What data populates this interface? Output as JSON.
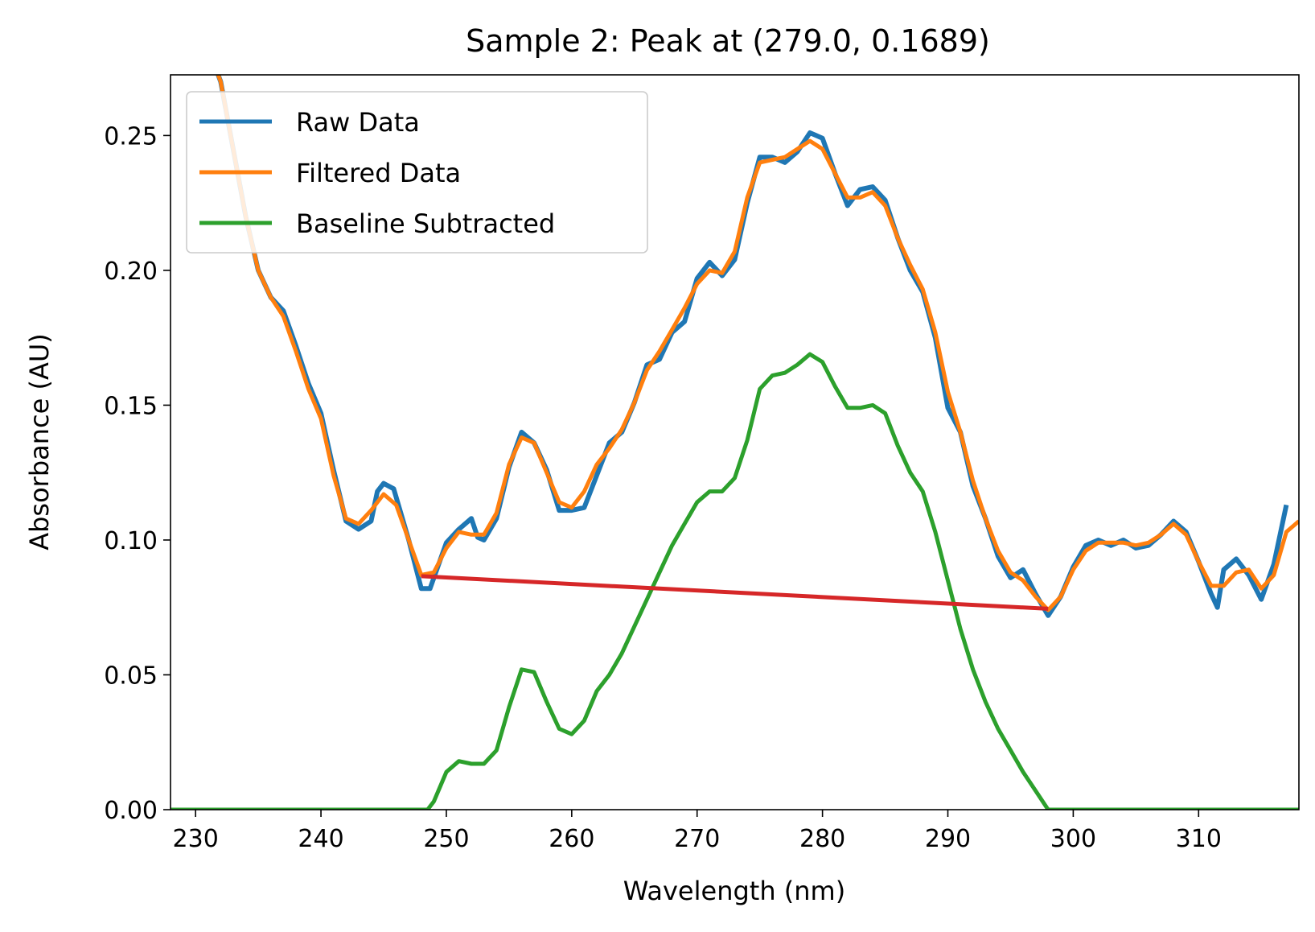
{
  "chart_data": {
    "type": "line",
    "title": "Sample 2: Peak at (279.0, 0.1689)",
    "xlabel": "Wavelength (nm)",
    "ylabel": "Absorbance (AU)",
    "xlim": [
      228,
      318
    ],
    "ylim": [
      0,
      0.2725
    ],
    "xticks": [
      230,
      240,
      250,
      260,
      270,
      280,
      290,
      300,
      310
    ],
    "yticks": [
      0.0,
      0.05,
      0.1,
      0.15,
      0.2,
      0.25
    ],
    "xtick_labels": [
      "230",
      "240",
      "250",
      "260",
      "270",
      "280",
      "290",
      "300",
      "310"
    ],
    "ytick_labels": [
      "0.00",
      "0.05",
      "0.10",
      "0.15",
      "0.20",
      "0.25"
    ],
    "grid": false,
    "legend_position": "upper-left",
    "series": [
      {
        "name": "Raw Data",
        "color": "#1f77b4",
        "points": [
          [
            228,
            0.32
          ],
          [
            230,
            0.295
          ],
          [
            232,
            0.27
          ],
          [
            233,
            0.245
          ],
          [
            234,
            0.22
          ],
          [
            235,
            0.2
          ],
          [
            236,
            0.19
          ],
          [
            237,
            0.185
          ],
          [
            238,
            0.172
          ],
          [
            239,
            0.158
          ],
          [
            240,
            0.147
          ],
          [
            241,
            0.126
          ],
          [
            242,
            0.107
          ],
          [
            243,
            0.104
          ],
          [
            244,
            0.107
          ],
          [
            244.5,
            0.118
          ],
          [
            245,
            0.121
          ],
          [
            245.8,
            0.119
          ],
          [
            247,
            0.1
          ],
          [
            248,
            0.082
          ],
          [
            248.7,
            0.082
          ],
          [
            250,
            0.099
          ],
          [
            251,
            0.104
          ],
          [
            252,
            0.108
          ],
          [
            252.5,
            0.101
          ],
          [
            253,
            0.1
          ],
          [
            254,
            0.108
          ],
          [
            255,
            0.127
          ],
          [
            256,
            0.14
          ],
          [
            257,
            0.136
          ],
          [
            258,
            0.126
          ],
          [
            259,
            0.111
          ],
          [
            260,
            0.111
          ],
          [
            261,
            0.112
          ],
          [
            262,
            0.124
          ],
          [
            263,
            0.136
          ],
          [
            264,
            0.14
          ],
          [
            265,
            0.151
          ],
          [
            266,
            0.165
          ],
          [
            267,
            0.167
          ],
          [
            268,
            0.177
          ],
          [
            269,
            0.181
          ],
          [
            270,
            0.197
          ],
          [
            271,
            0.203
          ],
          [
            272,
            0.198
          ],
          [
            273,
            0.204
          ],
          [
            274,
            0.225
          ],
          [
            275,
            0.242
          ],
          [
            276,
            0.242
          ],
          [
            277,
            0.24
          ],
          [
            278,
            0.244
          ],
          [
            279,
            0.251
          ],
          [
            280,
            0.249
          ],
          [
            281,
            0.236
          ],
          [
            282,
            0.224
          ],
          [
            283,
            0.23
          ],
          [
            284,
            0.231
          ],
          [
            285,
            0.226
          ],
          [
            286,
            0.212
          ],
          [
            287,
            0.2
          ],
          [
            288,
            0.192
          ],
          [
            289,
            0.175
          ],
          [
            290,
            0.149
          ],
          [
            291,
            0.14
          ],
          [
            292,
            0.12
          ],
          [
            293,
            0.108
          ],
          [
            294,
            0.094
          ],
          [
            295,
            0.086
          ],
          [
            296,
            0.089
          ],
          [
            297,
            0.08
          ],
          [
            298,
            0.072
          ],
          [
            299,
            0.079
          ],
          [
            300,
            0.09
          ],
          [
            301,
            0.098
          ],
          [
            302,
            0.1
          ],
          [
            303,
            0.098
          ],
          [
            304,
            0.1
          ],
          [
            305,
            0.097
          ],
          [
            306,
            0.098
          ],
          [
            307,
            0.102
          ],
          [
            308,
            0.107
          ],
          [
            309,
            0.103
          ],
          [
            310,
            0.092
          ],
          [
            311,
            0.08
          ],
          [
            311.5,
            0.075
          ],
          [
            312,
            0.089
          ],
          [
            313,
            0.093
          ],
          [
            314,
            0.087
          ],
          [
            315,
            0.078
          ],
          [
            316,
            0.091
          ],
          [
            317,
            0.113
          ]
        ]
      },
      {
        "name": "Filtered Data",
        "color": "#ff7f0e",
        "points": [
          [
            228,
            0.32
          ],
          [
            230,
            0.295
          ],
          [
            232,
            0.27
          ],
          [
            233,
            0.245
          ],
          [
            234,
            0.22
          ],
          [
            235,
            0.2
          ],
          [
            236,
            0.19
          ],
          [
            237,
            0.183
          ],
          [
            238,
            0.17
          ],
          [
            239,
            0.156
          ],
          [
            240,
            0.145
          ],
          [
            241,
            0.124
          ],
          [
            242,
            0.108
          ],
          [
            243,
            0.106
          ],
          [
            244,
            0.111
          ],
          [
            245,
            0.117
          ],
          [
            246,
            0.113
          ],
          [
            247,
            0.1
          ],
          [
            248,
            0.087
          ],
          [
            249,
            0.088
          ],
          [
            250,
            0.097
          ],
          [
            251,
            0.103
          ],
          [
            252,
            0.102
          ],
          [
            253,
            0.102
          ],
          [
            254,
            0.11
          ],
          [
            255,
            0.128
          ],
          [
            256,
            0.138
          ],
          [
            257,
            0.136
          ],
          [
            258,
            0.125
          ],
          [
            259,
            0.114
          ],
          [
            260,
            0.112
          ],
          [
            261,
            0.118
          ],
          [
            262,
            0.128
          ],
          [
            263,
            0.134
          ],
          [
            264,
            0.141
          ],
          [
            265,
            0.151
          ],
          [
            266,
            0.163
          ],
          [
            267,
            0.17
          ],
          [
            268,
            0.178
          ],
          [
            269,
            0.186
          ],
          [
            270,
            0.195
          ],
          [
            271,
            0.2
          ],
          [
            272,
            0.199
          ],
          [
            273,
            0.207
          ],
          [
            274,
            0.227
          ],
          [
            275,
            0.24
          ],
          [
            276,
            0.241
          ],
          [
            277,
            0.242
          ],
          [
            278,
            0.245
          ],
          [
            279,
            0.248
          ],
          [
            280,
            0.245
          ],
          [
            281,
            0.236
          ],
          [
            282,
            0.227
          ],
          [
            283,
            0.227
          ],
          [
            284,
            0.229
          ],
          [
            285,
            0.224
          ],
          [
            286,
            0.212
          ],
          [
            287,
            0.202
          ],
          [
            288,
            0.193
          ],
          [
            289,
            0.177
          ],
          [
            290,
            0.155
          ],
          [
            291,
            0.14
          ],
          [
            292,
            0.122
          ],
          [
            293,
            0.108
          ],
          [
            294,
            0.096
          ],
          [
            295,
            0.088
          ],
          [
            296,
            0.085
          ],
          [
            297,
            0.079
          ],
          [
            298,
            0.074
          ],
          [
            299,
            0.079
          ],
          [
            300,
            0.089
          ],
          [
            301,
            0.096
          ],
          [
            302,
            0.099
          ],
          [
            303,
            0.099
          ],
          [
            304,
            0.099
          ],
          [
            305,
            0.098
          ],
          [
            306,
            0.099
          ],
          [
            307,
            0.102
          ],
          [
            308,
            0.106
          ],
          [
            309,
            0.102
          ],
          [
            310,
            0.092
          ],
          [
            311,
            0.083
          ],
          [
            312,
            0.083
          ],
          [
            313,
            0.088
          ],
          [
            314,
            0.089
          ],
          [
            315,
            0.082
          ],
          [
            316,
            0.087
          ],
          [
            317,
            0.103
          ],
          [
            318,
            0.107
          ]
        ]
      },
      {
        "name": "Baseline Subtracted",
        "color": "#2ca02c",
        "points": [
          [
            228,
            0
          ],
          [
            248.5,
            0
          ],
          [
            249,
            0.003
          ],
          [
            250,
            0.014
          ],
          [
            251,
            0.018
          ],
          [
            252,
            0.017
          ],
          [
            253,
            0.017
          ],
          [
            254,
            0.022
          ],
          [
            255,
            0.038
          ],
          [
            256,
            0.052
          ],
          [
            257,
            0.051
          ],
          [
            258,
            0.04
          ],
          [
            259,
            0.03
          ],
          [
            260,
            0.028
          ],
          [
            261,
            0.033
          ],
          [
            262,
            0.044
          ],
          [
            263,
            0.05
          ],
          [
            264,
            0.058
          ],
          [
            265,
            0.068
          ],
          [
            266,
            0.078
          ],
          [
            267,
            0.088
          ],
          [
            268,
            0.098
          ],
          [
            269,
            0.106
          ],
          [
            270,
            0.114
          ],
          [
            271,
            0.118
          ],
          [
            272,
            0.118
          ],
          [
            273,
            0.123
          ],
          [
            274,
            0.137
          ],
          [
            275,
            0.156
          ],
          [
            276,
            0.161
          ],
          [
            277,
            0.162
          ],
          [
            278,
            0.165
          ],
          [
            279,
            0.1689
          ],
          [
            280,
            0.166
          ],
          [
            281,
            0.157
          ],
          [
            282,
            0.149
          ],
          [
            283,
            0.149
          ],
          [
            284,
            0.15
          ],
          [
            285,
            0.147
          ],
          [
            286,
            0.135
          ],
          [
            287,
            0.125
          ],
          [
            288,
            0.118
          ],
          [
            289,
            0.103
          ],
          [
            290,
            0.085
          ],
          [
            291,
            0.067
          ],
          [
            292,
            0.052
          ],
          [
            293,
            0.04
          ],
          [
            294,
            0.03
          ],
          [
            295,
            0.022
          ],
          [
            296,
            0.014
          ],
          [
            297,
            0.007
          ],
          [
            298,
            0
          ],
          [
            318,
            0
          ]
        ]
      },
      {
        "color": "#d62728",
        "points": [
          [
            248,
            0.0866
          ],
          [
            298,
            0.0745
          ]
        ]
      }
    ]
  }
}
